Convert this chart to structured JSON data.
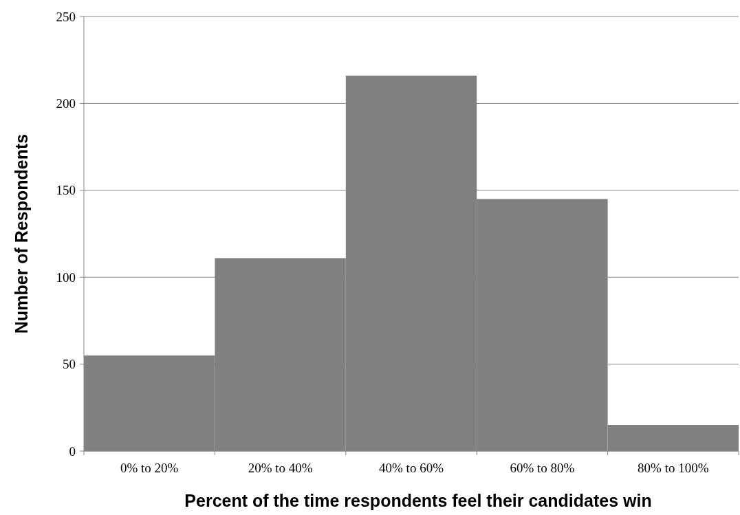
{
  "chart_data": {
    "type": "bar",
    "categories": [
      "0% to 20%",
      "20% to 40%",
      "40% to 60%",
      "60% to 80%",
      "80% to 100%"
    ],
    "values": [
      55,
      111,
      216,
      145,
      15
    ],
    "color": "#808080",
    "ylim": [
      0,
      250
    ],
    "yticks": [
      0,
      50,
      100,
      150,
      200,
      250
    ],
    "grid": "y",
    "xlabel": "Percent of the time respondents feel their candidates win",
    "ylabel": "Number of Respondents"
  }
}
